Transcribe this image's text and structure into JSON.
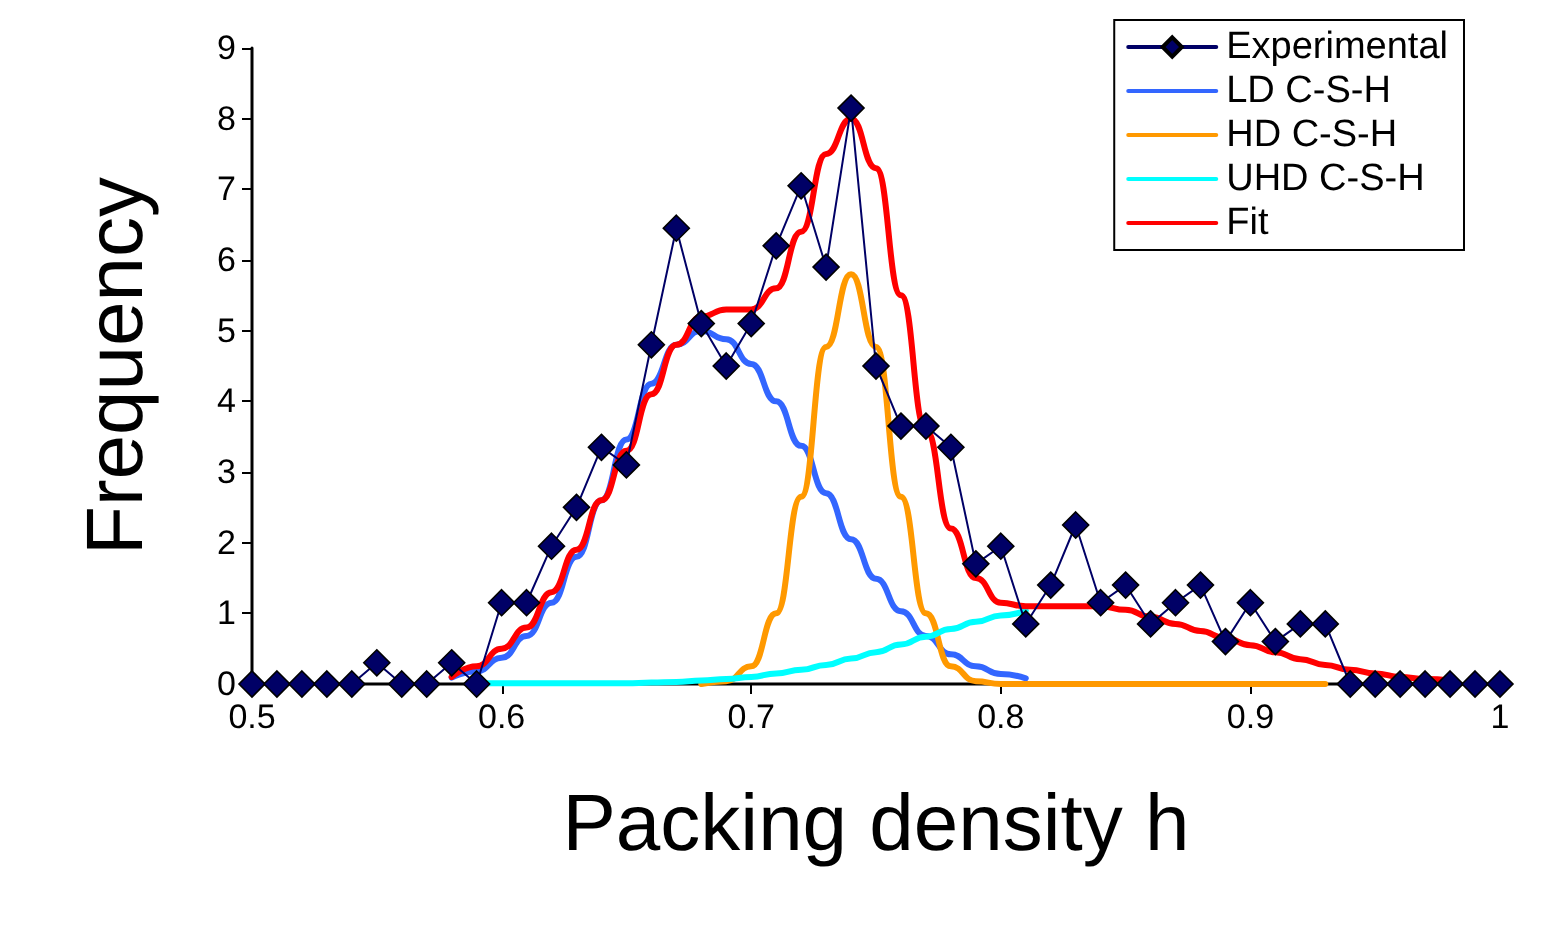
{
  "chart_data": {
    "type": "line",
    "xlabel": "Packing density h",
    "ylabel": "Frequency",
    "xlim": [
      0.5,
      1
    ],
    "xticks": [
      0.5,
      0.6,
      0.7,
      0.8,
      0.9,
      1
    ],
    "ylim": [
      0,
      9
    ],
    "yticks": [
      0,
      1,
      2,
      3,
      4,
      5,
      6,
      7,
      8,
      9
    ],
    "grid": false,
    "legend": "top right",
    "series": [
      {
        "name": "Experimental",
        "color": "#000066",
        "marker": "diamond",
        "x": [
          0.5,
          0.51,
          0.52,
          0.53,
          0.54,
          0.55,
          0.56,
          0.57,
          0.58,
          0.59,
          0.6,
          0.61,
          0.62,
          0.63,
          0.64,
          0.65,
          0.66,
          0.67,
          0.68,
          0.69,
          0.7,
          0.71,
          0.72,
          0.73,
          0.74,
          0.75,
          0.76,
          0.77,
          0.78,
          0.79,
          0.8,
          0.81,
          0.82,
          0.83,
          0.84,
          0.85,
          0.86,
          0.87,
          0.88,
          0.89,
          0.9,
          0.91,
          0.92,
          0.93,
          0.94,
          0.95,
          0.96,
          0.97,
          0.98,
          0.99,
          1
        ],
        "values": [
          0,
          0,
          0,
          0,
          0,
          0.3,
          0,
          0,
          0.3,
          0,
          1.15,
          1.15,
          1.95,
          2.5,
          3.35,
          3.1,
          4.8,
          6.45,
          5.1,
          4.5,
          5.1,
          6.2,
          7.05,
          5.9,
          8.15,
          4.5,
          3.65,
          3.65,
          3.35,
          1.7,
          1.95,
          0.85,
          1.4,
          2.25,
          1.15,
          1.4,
          0.85,
          1.15,
          1.4,
          0.6,
          1.15,
          0.6,
          0.85,
          0.85,
          0,
          0,
          0,
          0,
          0,
          0,
          0
        ]
      },
      {
        "name": "LD C-S-H",
        "color": "#3366ff",
        "x": [
          0.58,
          0.59,
          0.6,
          0.61,
          0.62,
          0.63,
          0.64,
          0.65,
          0.66,
          0.67,
          0.68,
          0.69,
          0.7,
          0.71,
          0.72,
          0.73,
          0.74,
          0.75,
          0.76,
          0.77,
          0.78,
          0.79,
          0.8,
          0.81
        ],
        "values": [
          0.09,
          0.18,
          0.37,
          0.68,
          1.15,
          1.8,
          2.6,
          3.46,
          4.25,
          4.8,
          5.0,
          4.88,
          4.53,
          4.0,
          3.37,
          2.7,
          2.05,
          1.49,
          1.03,
          0.68,
          0.42,
          0.25,
          0.14,
          0.08
        ]
      },
      {
        "name": "HD C-S-H",
        "color": "#ff9900",
        "x": [
          0.68,
          0.69,
          0.7,
          0.71,
          0.72,
          0.73,
          0.74,
          0.75,
          0.76,
          0.77,
          0.78,
          0.79,
          0.8,
          0.81,
          0.82,
          0.83,
          0.84,
          0.85,
          0.86,
          0.87,
          0.88,
          0.89,
          0.9,
          0.91,
          0.92,
          0.93
        ],
        "values": [
          0,
          0.04,
          0.25,
          1.0,
          2.65,
          4.77,
          5.8,
          4.77,
          2.65,
          1.0,
          0.25,
          0.04,
          0,
          0,
          0,
          0,
          0,
          0,
          0,
          0,
          0,
          0,
          0,
          0,
          0,
          0
        ]
      },
      {
        "name": "UHD C-S-H",
        "color": "#00ffff",
        "x": [
          0.59,
          0.6,
          0.61,
          0.62,
          0.63,
          0.64,
          0.65,
          0.66,
          0.67,
          0.68,
          0.69,
          0.7,
          0.71,
          0.72,
          0.73,
          0.74,
          0.75,
          0.76,
          0.77,
          0.78,
          0.79,
          0.8,
          0.81
        ],
        "values": [
          0.01,
          0.01,
          0.01,
          0.01,
          0.01,
          0.01,
          0.01,
          0.02,
          0.03,
          0.05,
          0.07,
          0.1,
          0.15,
          0.2,
          0.27,
          0.36,
          0.45,
          0.56,
          0.67,
          0.78,
          0.88,
          0.97,
          1.04
        ]
      },
      {
        "name": "Fit",
        "color": "#ff0000",
        "x": [
          0.58,
          0.59,
          0.6,
          0.61,
          0.62,
          0.63,
          0.64,
          0.65,
          0.66,
          0.67,
          0.68,
          0.69,
          0.7,
          0.71,
          0.72,
          0.73,
          0.74,
          0.75,
          0.76,
          0.77,
          0.78,
          0.79,
          0.8,
          0.81,
          0.82,
          0.83,
          0.84,
          0.85,
          0.86,
          0.87,
          0.88,
          0.89,
          0.9,
          0.91,
          0.92,
          0.93,
          0.94,
          0.95,
          0.96,
          0.97,
          0.98
        ],
        "values": [
          0.1,
          0.25,
          0.5,
          0.8,
          1.3,
          1.9,
          2.6,
          3.3,
          4.1,
          4.8,
          5.2,
          5.3,
          5.3,
          5.6,
          6.4,
          7.5,
          8.0,
          7.3,
          5.5,
          3.6,
          2.2,
          1.5,
          1.15,
          1.1,
          1.1,
          1.1,
          1.1,
          1.05,
          0.95,
          0.85,
          0.75,
          0.65,
          0.55,
          0.45,
          0.35,
          0.27,
          0.2,
          0.15,
          0.1,
          0.07,
          0.05
        ]
      }
    ]
  }
}
